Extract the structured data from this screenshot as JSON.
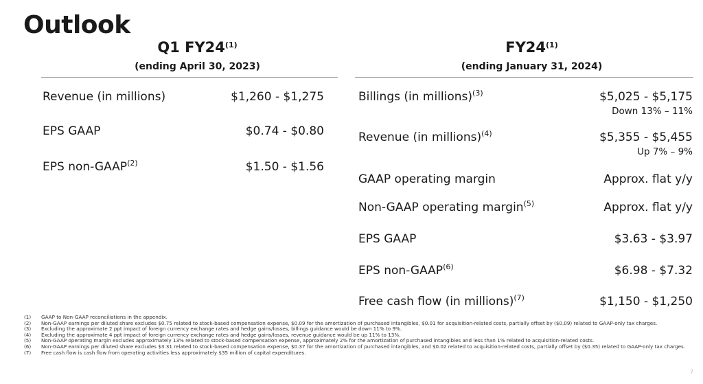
{
  "title": "Outlook",
  "left": {
    "heading": "Q1 FY24",
    "heading_sup": "(1)",
    "subheading": "(ending April 30, 2023)",
    "rows": [
      {
        "label": "Revenue (in millions)",
        "value": "$1,260 - $1,275"
      },
      {
        "label": "EPS GAAP",
        "value": "$0.74 - $0.80"
      },
      {
        "label": "EPS non-GAAP",
        "sup": "(2)",
        "value": "$1.50 - $1.56"
      }
    ]
  },
  "right": {
    "heading": "FY24",
    "heading_sup": "(1)",
    "subheading": "(ending January 31, 2024)",
    "rows": [
      {
        "label": "Billings (in millions)",
        "sup": "(3)",
        "value": "$5,025 - $5,175",
        "note": "Down 13% – 11%"
      },
      {
        "label": "Revenue (in millions)",
        "sup": "(4)",
        "value": "$5,355 - $5,455",
        "note": "Up 7% – 9%"
      },
      {
        "label": "GAAP operating margin",
        "value": "Approx. flat y/y"
      },
      {
        "label": "Non-GAAP operating margin",
        "sup": "(5)",
        "value": "Approx. flat y/y"
      },
      {
        "label": "EPS GAAP",
        "value": "$3.63 - $3.97"
      },
      {
        "label": "EPS non-GAAP",
        "sup": "(6)",
        "value": "$6.98 - $7.32"
      },
      {
        "label": "Free cash flow (in millions)",
        "sup": "(7)",
        "value": "$1,150 - $1,250"
      }
    ]
  },
  "footnotes": [
    {
      "num": "(1)",
      "text": "GAAP to Non-GAAP reconciliations in the appendix."
    },
    {
      "num": "(2)",
      "text": "Non-GAAP earnings per diluted share excludes $0.75 related to stock-based compensation expense, $0.09 for the amortization of purchased intangibles, $0.01 for acquisition-related costs, partially offset by ($0.09) related to GAAP-only tax charges."
    },
    {
      "num": "(3)",
      "text": "Excluding the approximate 2 ppt impact of foreign currency exchange rates and hedge gains/losses, billings guidance would be down 11% to 9%."
    },
    {
      "num": "(4)",
      "text": "Excluding the approximate 4 ppt impact of foreign currency exchange rates and hedge gains/losses, revenue guidance would be up 11% to 13%."
    },
    {
      "num": "(5)",
      "text": "Non-GAAP operating margin excludes approximately 13% related to stock-based compensation expense, approximately 2% for the amortization of purchased intangibles and less than 1% related to acquisition-related costs."
    },
    {
      "num": "(6)",
      "text": "Non-GAAP earnings per diluted share excludes $3.31 related to stock-based compensation expense, $0.37 for the amortization of purchased intangibles, and $0.02 related to acquisition-related costs, partially offset by ($0.35) related to GAAP-only tax charges."
    },
    {
      "num": "(7)",
      "text": "Free cash flow is cash flow from operating activities less approximately $35 million of capital expenditures."
    }
  ],
  "page_number": "7"
}
